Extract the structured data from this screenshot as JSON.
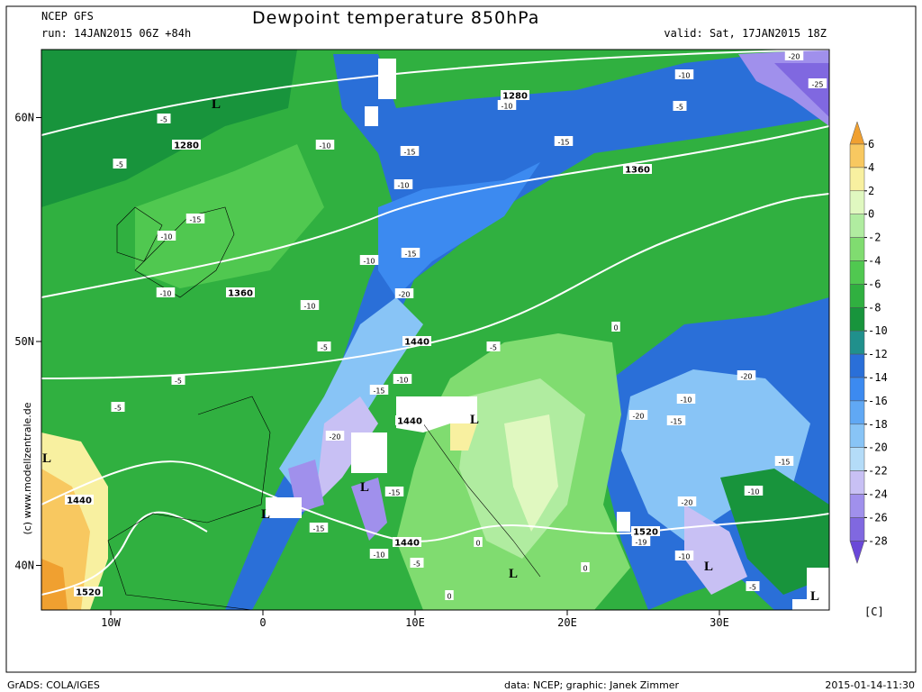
{
  "header": {
    "model": "NCEP GFS",
    "title": "Dewpoint temperature 850hPa",
    "run": "run: 14JAN2015 06Z +84h",
    "valid": "valid: Sat, 17JAN2015 18Z"
  },
  "map": {
    "lat_ticks": [
      {
        "value": 60,
        "label": "60N"
      },
      {
        "value": 50,
        "label": "50N"
      },
      {
        "value": 40,
        "label": "40N"
      }
    ],
    "lon_ticks": [
      {
        "value": -10,
        "label": "10W"
      },
      {
        "value": 0,
        "label": "0"
      },
      {
        "value": 10,
        "label": "10E"
      },
      {
        "value": 20,
        "label": "20E"
      },
      {
        "value": 30,
        "label": "30E"
      }
    ],
    "height_labels": [
      "1280",
      "1280",
      "1360",
      "1360",
      "1440",
      "1440",
      "1440",
      "1440",
      "1520",
      "1520"
    ],
    "temp_labels": [
      "-5",
      "-5",
      "-5",
      "-5",
      "-5",
      "-5",
      "-5",
      "-5",
      "-5",
      "-10",
      "-10",
      "-10",
      "-10",
      "-10",
      "-10",
      "-10",
      "-10",
      "-10",
      "-10",
      "-10",
      "-10",
      "-10",
      "-15",
      "-15",
      "-15",
      "-15",
      "-15",
      "-15",
      "-15",
      "-15",
      "-15",
      "-20",
      "-20",
      "-20",
      "-20",
      "-20",
      "-20",
      "-25",
      "0",
      "0",
      "0",
      "0",
      "-19"
    ],
    "low_markers": [
      "L",
      "L",
      "L",
      "L",
      "L",
      "L",
      "L",
      "L"
    ]
  },
  "colorbar": {
    "ticks": [
      6,
      4,
      2,
      0,
      -2,
      -4,
      -6,
      -8,
      -10,
      -12,
      -14,
      -16,
      -18,
      -20,
      -22,
      -24,
      -26,
      -28
    ],
    "colors": [
      "#f0a030",
      "#f8c860",
      "#f8f0a0",
      "#e0f8c0",
      "#b0eca0",
      "#80dc70",
      "#50c850",
      "#30b040",
      "#18943c",
      "#20908c",
      "#2a6fd8",
      "#3c8af0",
      "#60a8f4",
      "#88c4f6",
      "#b4dcf8",
      "#c8c0f4",
      "#a090ec",
      "#8068e0",
      "#6a48d8"
    ],
    "unit": "[C]"
  },
  "credit": "(c) www.modellzentrale.de",
  "footer": {
    "left": "GrADS: COLA/IGES",
    "center": "data: NCEP; graphic: Janek Zimmer",
    "right": "2015-01-14-11:30"
  }
}
